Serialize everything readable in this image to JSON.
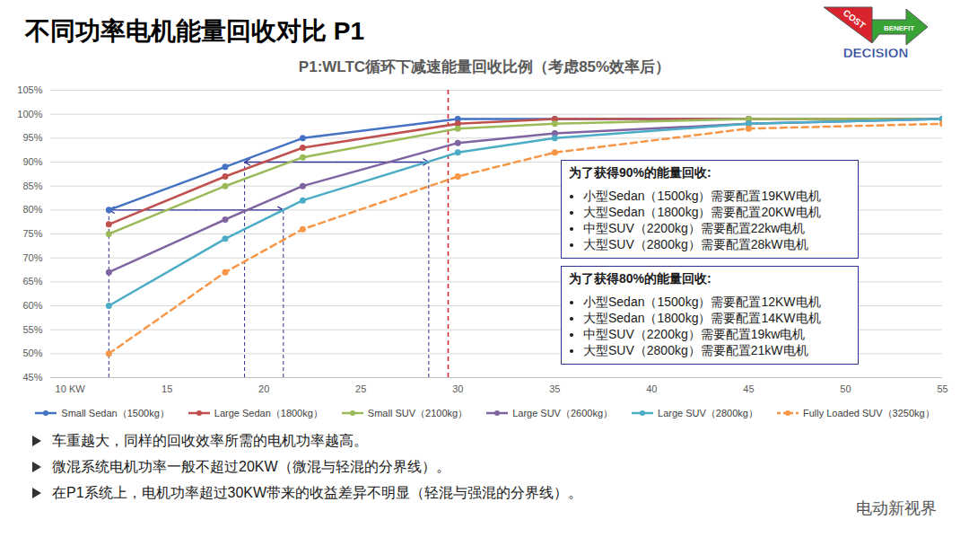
{
  "header": {
    "title": "不同功率电机能量回收对比 P1",
    "logo": [
      "COST",
      "BENEFIT",
      "DECISION"
    ]
  },
  "chart_data": {
    "type": "line",
    "title": "P1:WLTC循环下减速能量回收比例（考虑85%效率后）",
    "x": [
      12,
      18,
      22,
      30,
      35,
      45,
      55
    ],
    "xlim": [
      9,
      55
    ],
    "xticks": [
      {
        "value": 10,
        "label": "10 KW"
      },
      15,
      20,
      25,
      30,
      35,
      40,
      45,
      50,
      55
    ],
    "ylim": [
      45,
      105
    ],
    "yticks": [
      {
        "value": 45,
        "label": "45%"
      },
      {
        "value": 50,
        "label": "50%"
      },
      {
        "value": 55,
        "label": "55%"
      },
      {
        "value": 60,
        "label": "60%"
      },
      {
        "value": 65,
        "label": "65%"
      },
      {
        "value": 70,
        "label": "70%"
      },
      {
        "value": 75,
        "label": "75%"
      },
      {
        "value": 80,
        "label": "80%"
      },
      {
        "value": 85,
        "label": "85%"
      },
      {
        "value": 90,
        "label": "90%"
      },
      {
        "value": 95,
        "label": "95%"
      },
      {
        "value": 100,
        "label": "100%"
      },
      {
        "value": 105,
        "label": "105%"
      }
    ],
    "grid": true,
    "legend": "bottom",
    "series": [
      {
        "name": "Small Sedan（1500kg）",
        "color": "#4472c4",
        "marker": "circle",
        "line_style": "solid",
        "values": [
          80,
          89,
          95,
          99,
          99,
          99,
          99
        ]
      },
      {
        "name": "Large Sedan（1800kg）",
        "color": "#c0504d",
        "marker": "circle",
        "line_style": "solid",
        "values": [
          77,
          87,
          93,
          98,
          99,
          99,
          99
        ]
      },
      {
        "name": "Small SUV（2100kg）",
        "color": "#9bbb59",
        "marker": "circle",
        "line_style": "solid",
        "values": [
          75,
          85,
          91,
          97,
          98,
          99,
          99
        ]
      },
      {
        "name": "Large SUV（2600kg）",
        "color": "#8064a2",
        "marker": "circle",
        "line_style": "solid",
        "values": [
          67,
          78,
          85,
          94,
          96,
          98,
          99
        ]
      },
      {
        "name": "Large SUV（2800kg）",
        "color": "#4bacc6",
        "marker": "circle",
        "line_style": "solid",
        "values": [
          60,
          74,
          82,
          92,
          95,
          98,
          99
        ]
      },
      {
        "name": "Fully Loaded SUV（3250kg）",
        "color": "#f79646",
        "marker": "circle",
        "line_style": "dashed",
        "values": [
          50,
          67,
          76,
          87,
          92,
          97,
          98
        ]
      }
    ],
    "reference_lines": [
      {
        "x": 29.5,
        "color": "#e02020",
        "line_style": "dashed"
      }
    ],
    "arrows": [
      {
        "y": 80,
        "x": [
          12,
          21
        ],
        "color": "#2e3192"
      },
      {
        "y": 90,
        "x": [
          19,
          28.5
        ],
        "color": "#2e3192"
      }
    ],
    "annotations": [
      {
        "title": "为了获得90%的能量回收:",
        "items": [
          "小型Sedan（1500kg）需要配置19KW电机",
          "大型Sedan（1800kg）需要配置20KW电机",
          "中型SUV（2200kg）需要配置22kw电机",
          "大型SUV（2800kg）需要配置28kW电机"
        ]
      },
      {
        "title": "为了获得80%的能量回收:",
        "items": [
          "小型Sedan（1500kg）需要配置12KW电机",
          "大型Sedan（1800kg）需要配置14KW电机",
          "中型SUV（2200kg）需要配置19kw电机",
          "大型SUV（2800kg）需要配置21kW电机"
        ]
      }
    ]
  },
  "notes": [
    "车重越大，同样的回收效率所需的电机功率越高。",
    "微混系统电机功率一般不超过20KW（微混与轻混的分界线）。",
    "在P1系统上，电机功率超过30KW带来的收益差异不明显（轻混与强混的分界线）。"
  ],
  "watermark": "电动新视界"
}
